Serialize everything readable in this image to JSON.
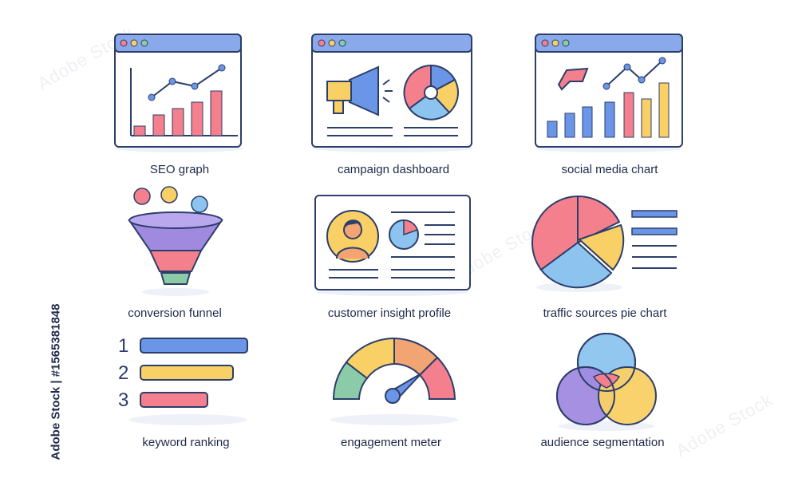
{
  "icons": [
    {
      "label": "SEO graph"
    },
    {
      "label": "campaign dashboard"
    },
    {
      "label": "social media chart"
    },
    {
      "label": "conversion funnel"
    },
    {
      "label": "customer insight profile"
    },
    {
      "label": "traffic sources pie chart"
    },
    {
      "label": "keyword ranking"
    },
    {
      "label": "engagement meter"
    },
    {
      "label": "audience segmentation"
    }
  ],
  "ranking_numbers": [
    "1",
    "2",
    "3"
  ],
  "stock_id": "Adobe Stock | #1565381848",
  "watermark": "Adobe Stock",
  "colors": {
    "outline": "#2c3e6b",
    "blue": "#6b95e6",
    "pink": "#f47f8d",
    "yellow": "#f9d065",
    "light_blue": "#8cc4ef",
    "purple": "#a08ae0",
    "orange": "#f2a472",
    "green": "#8ccba8",
    "header": "#8aa9eb"
  }
}
